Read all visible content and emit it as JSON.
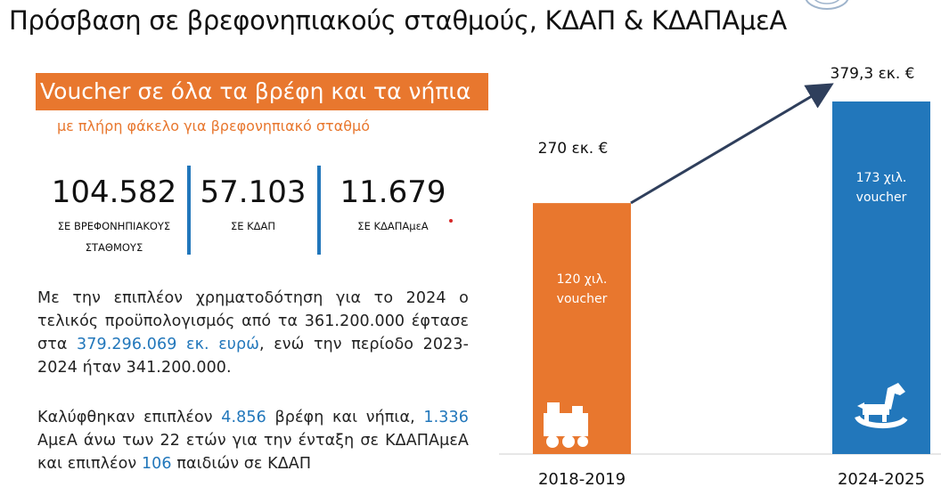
{
  "title": "Πρόσβαση σε βρεφονηπιακούς σταθμούς, ΚΔΑΠ & ΚΔΑΠΑμεΑ",
  "banner": {
    "text": "Voucher σε όλα τα βρέφη και τα νήπια",
    "subtitle": "με πλήρη φάκελο για βρεφονηπιακό σταθμό",
    "color": "#e8772e"
  },
  "stats": [
    {
      "value": "104.582",
      "label_line1": "ΣΕ ΒΡΕΦΟΝΗΠΙΑΚΟΥΣ",
      "label_line2": "ΣΤΑΘΜΟΥΣ"
    },
    {
      "value": "57.103",
      "label_line1": "ΣΕ ΚΔΑΠ",
      "label_line2": ""
    },
    {
      "value": "11.679",
      "label_line1": "ΣΕ ΚΔΑΠΑμεΑ",
      "label_line2": ""
    }
  ],
  "para1": {
    "pre": "Με την επιπλέον χρηματοδότηση για το 2024 ο τελικός προϋπολογισμός από τα 361.200.000 έφτασε στα ",
    "highlight": "379.296.069 εκ. ευρώ",
    "post": ", ενώ την περίοδο 2023-2024 ήταν 341.200.000."
  },
  "para2": {
    "t1": "Καλύφθηκαν επιπλέον ",
    "h1": "4.856",
    "t2": " βρέφη και νήπια, ",
    "h2": "1.336",
    "t3": " ΑμεΑ άνω των 22 ετών για την ένταξη σε ΚΔΑΠΑμεΑ και επιπλέον ",
    "h3": "106",
    "t4": " παιδιών σε ΚΔΑΠ"
  },
  "colors": {
    "accent_orange": "#e8772e",
    "accent_blue": "#2277bb",
    "arrow": "#2f3f5c"
  },
  "icons": [
    "train-toy-icon",
    "rocking-horse-icon",
    "logo-icon"
  ],
  "chart_data": {
    "type": "bar",
    "categories": [
      "2018-2019",
      "2024-2025"
    ],
    "values": [
      270,
      379.3
    ],
    "value_labels": [
      "270 εκ. €",
      "379,3 εκ. €"
    ],
    "bar_texts": [
      [
        "120 χιλ.",
        "voucher"
      ],
      [
        "173 χιλ.",
        "voucher"
      ]
    ],
    "colors": [
      "#e8772e",
      "#2277bb"
    ],
    "unit": "εκ. €"
  }
}
